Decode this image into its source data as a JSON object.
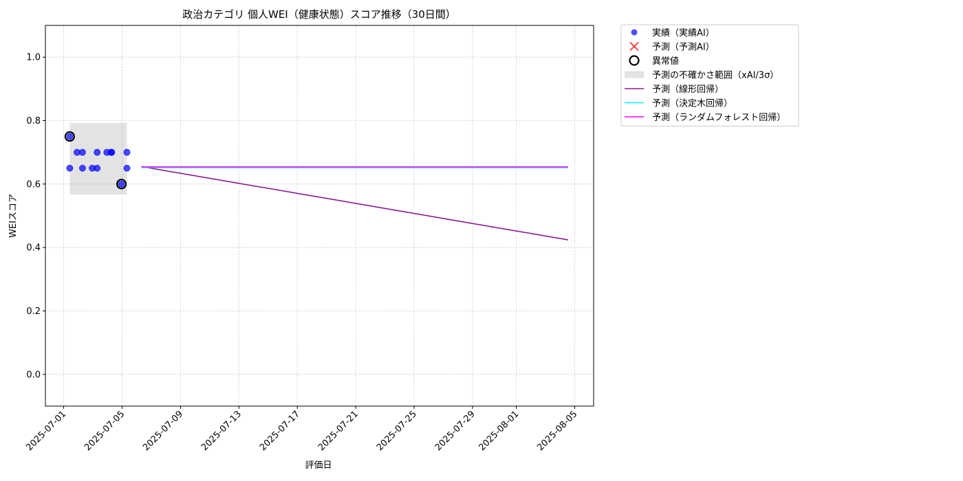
{
  "chart_data": {
    "type": "scatter",
    "title": "政治カテゴリ 個人WEI（健康状態）スコア推移（30日間）",
    "xlabel": "評価日",
    "ylabel": "WEIスコア",
    "xlim": [
      "2025-06-29 18:00",
      "2025-08-06 07:00"
    ],
    "xticks": [
      "2025-07-01",
      "2025-07-05",
      "2025-07-09",
      "2025-07-13",
      "2025-07-17",
      "2025-07-21",
      "2025-07-25",
      "2025-07-29",
      "2025-08-01",
      "2025-08-05"
    ],
    "ylim": [
      -0.1,
      1.1
    ],
    "yticks": [
      {
        "value": 0,
        "label": "0.0"
      },
      0.2,
      0.4,
      0.6,
      0.8,
      {
        "value": 1,
        "label": "1.0"
      }
    ],
    "grid": true,
    "legend": "outside",
    "series": [
      {
        "name": "実績（実績AI）",
        "kind": "scatter",
        "color": "#0000ff",
        "x": [
          "2025-07-01 10:00",
          "2025-07-01 10:00",
          "2025-07-01 22:00",
          "2025-07-02 07:00",
          "2025-07-02 07:00",
          "2025-07-02 23:00",
          "2025-07-03 07:00",
          "2025-07-03 07:00",
          "2025-07-03 23:00",
          "2025-07-04 06:00",
          "2025-07-04 07:00",
          "2025-07-04 23:00",
          "2025-07-05 08:00",
          "2025-07-05 08:00"
        ],
        "values": [
          0.75,
          0.65,
          0.7,
          0.7,
          0.65,
          0.65,
          0.7,
          0.65,
          0.7,
          0.7,
          0.7,
          0.6,
          0.7,
          0.65
        ]
      },
      {
        "name": "予測（予測AI）",
        "kind": "cross",
        "color": "#ff0000",
        "x": [],
        "values": []
      },
      {
        "name": "異常値",
        "kind": "ring",
        "color": "#000000",
        "x": [
          "2025-07-01 10:00",
          "2025-07-04 23:00"
        ],
        "values": [
          0.75,
          0.6
        ]
      },
      {
        "name": "予測の不確かさ範囲（xAI/3σ）",
        "kind": "band",
        "color": "#808080",
        "x": [
          "2025-07-01 10:00",
          "2025-07-05 08:00"
        ],
        "low": [
          0.567,
          0.567
        ],
        "high": [
          0.793,
          0.793
        ]
      },
      {
        "name": "予測（線形回帰）",
        "kind": "line",
        "color": "#8b1a8f",
        "x": [
          "2025-07-06 08:00",
          "2025-08-04 13:00"
        ],
        "values": [
          0.655,
          0.424
        ]
      },
      {
        "name": "予測（決定木回帰）",
        "kind": "line",
        "color": "#00ffff",
        "x": [
          "2025-07-06 08:00",
          "2025-08-04 13:00"
        ],
        "values": [
          0.652,
          0.652
        ]
      },
      {
        "name": "予測（ランダムフォレスト回帰）",
        "kind": "line",
        "color": "#ff00ff",
        "x": [
          "2025-07-06 08:00",
          "2025-08-04 13:00"
        ],
        "values": [
          0.654,
          0.654
        ]
      }
    ]
  }
}
